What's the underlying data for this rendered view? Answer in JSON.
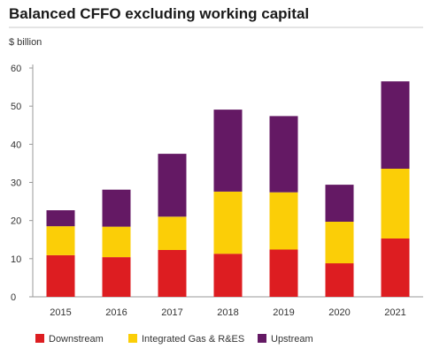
{
  "chart_data": {
    "type": "bar",
    "stacked": true,
    "title": "Balanced CFFO excluding working capital",
    "ylabel": "$ billion",
    "ylim": [
      0,
      60
    ],
    "yticks": [
      0,
      10,
      20,
      30,
      40,
      50,
      60
    ],
    "categories": [
      "2015",
      "2016",
      "2017",
      "2018",
      "2019",
      "2020",
      "2021"
    ],
    "series": [
      {
        "name": "Downstream",
        "color": "#dd1d21",
        "values": [
          10.9,
          10.4,
          12.3,
          11.3,
          12.4,
          8.8,
          15.3
        ]
      },
      {
        "name": "Integrated Gas & R&ES",
        "color": "#fbce07",
        "values": [
          7.6,
          8.0,
          8.7,
          16.3,
          15.0,
          10.9,
          18.3
        ]
      },
      {
        "name": "Upstream",
        "color": "#641964",
        "values": [
          4.2,
          9.7,
          16.5,
          21.5,
          20.0,
          9.7,
          22.9
        ]
      }
    ],
    "grid": false,
    "legend": "bottom"
  }
}
